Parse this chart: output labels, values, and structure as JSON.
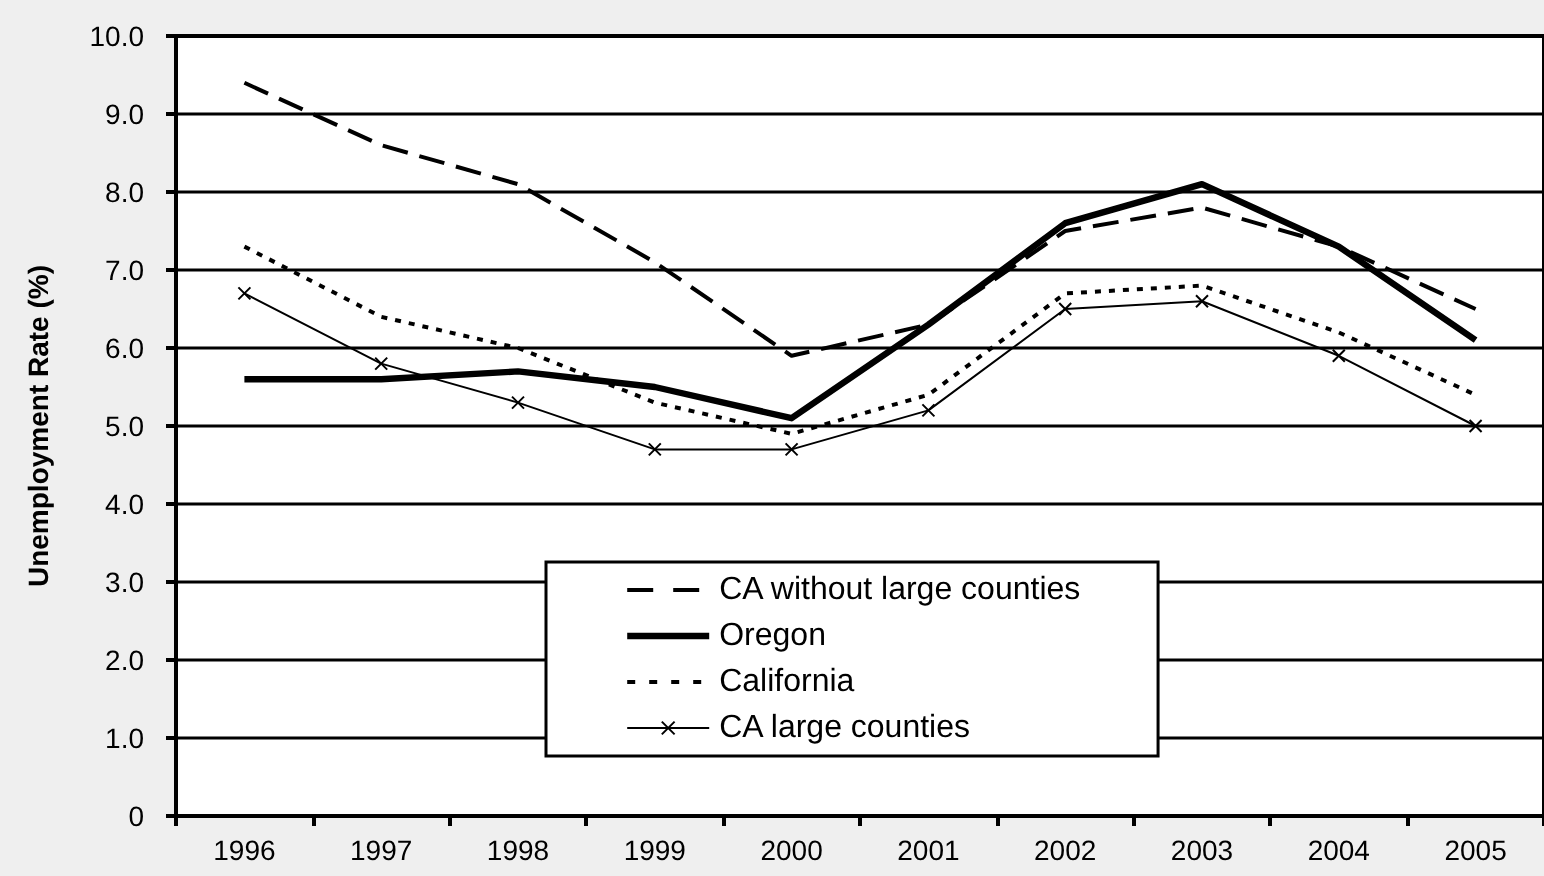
{
  "chart_data": {
    "type": "line",
    "ylabel": "Unemployment Rate (%)",
    "categories": [
      "1996",
      "1997",
      "1998",
      "1999",
      "2000",
      "2001",
      "2002",
      "2003",
      "2004",
      "2005"
    ],
    "series": [
      {
        "name": "CA without large counties",
        "color": "#000000",
        "line_style": "dashed",
        "values": [
          9.4,
          8.6,
          8.1,
          7.1,
          5.9,
          6.3,
          7.5,
          7.8,
          7.3,
          6.5
        ]
      },
      {
        "name": "Oregon",
        "color": "#000000",
        "line_style": "solid",
        "values": [
          5.6,
          5.6,
          5.7,
          5.5,
          5.1,
          6.3,
          7.6,
          8.1,
          7.3,
          6.1
        ]
      },
      {
        "name": "California",
        "color": "#000000",
        "line_style": "dotted",
        "values": [
          7.3,
          6.4,
          6.0,
          5.3,
          4.9,
          5.4,
          6.7,
          6.8,
          6.2,
          5.4
        ]
      },
      {
        "name": "CA large counties",
        "color": "#000000",
        "line_style": "solid",
        "marker": "cross",
        "values": [
          6.7,
          5.8,
          5.3,
          4.7,
          4.7,
          5.2,
          6.5,
          6.6,
          5.9,
          5.0
        ]
      }
    ],
    "ylim": [
      0,
      10
    ],
    "yticks": [
      0,
      {
        "value": 1,
        "label": "1.0"
      },
      {
        "value": 2,
        "label": "2.0"
      },
      {
        "value": 3,
        "label": "3.0"
      },
      {
        "value": 4,
        "label": "4.0"
      },
      {
        "value": 5,
        "label": "5.0"
      },
      {
        "value": 6,
        "label": "6.0"
      },
      {
        "value": 7,
        "label": "7.0"
      },
      {
        "value": 8,
        "label": "8.0"
      },
      {
        "value": 9,
        "label": "9.0"
      },
      {
        "value": 10,
        "label": "10.0"
      }
    ],
    "grid": "y",
    "legend": "bottom",
    "marker": "none"
  }
}
